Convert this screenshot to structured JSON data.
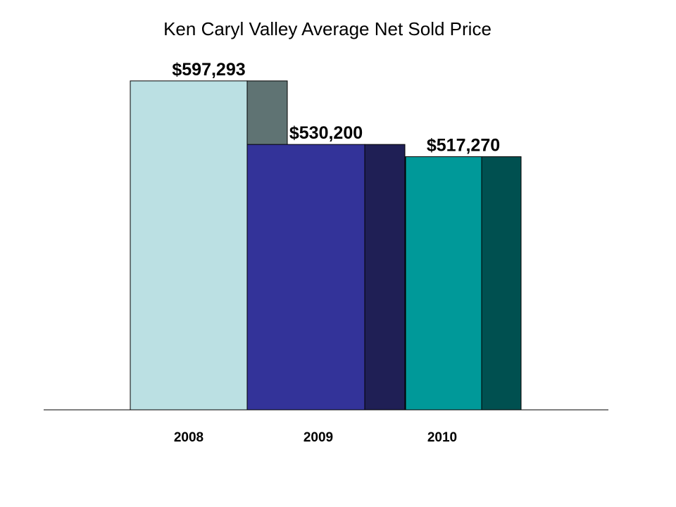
{
  "chart_data": {
    "type": "bar",
    "title": "Ken Caryl Valley Average Net Sold Price",
    "xlabel": "",
    "ylabel": "",
    "categories": [
      "2008",
      "2009",
      "2010"
    ],
    "values": [
      597293,
      530200,
      517270
    ],
    "data_labels": [
      "$597,293",
      "$530,200",
      "$517,270"
    ],
    "ylim": [
      250000,
      650000
    ],
    "grid": false,
    "legend": "none",
    "style": "3d",
    "colors": {
      "fronts": [
        "#BBE0E3",
        "#333399",
        "#009999"
      ],
      "sides": [
        "#5F7373",
        "#1F1F55",
        "#005050"
      ],
      "edges": "#000000"
    }
  }
}
